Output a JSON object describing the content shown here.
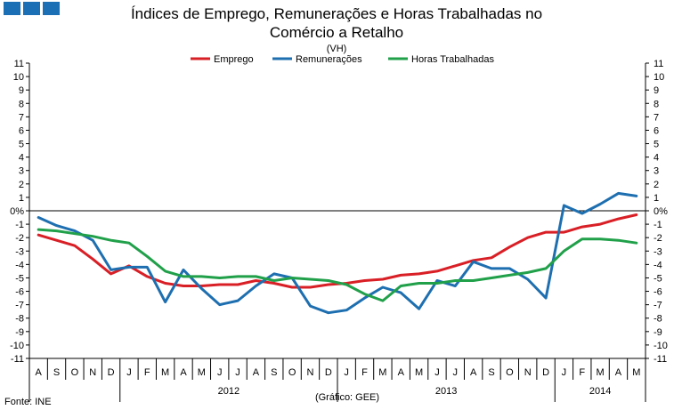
{
  "logo": {
    "color": "#1a6fb5"
  },
  "chart_data": {
    "type": "line",
    "title": "Índices de Emprego, Remunerações e Horas Trabalhadas no Comércio a Retalho",
    "subtitle": "(VH)",
    "y_unit": "%",
    "ylim": [
      -11,
      11
    ],
    "yticks": [
      "11",
      "10",
      "9",
      "8",
      "7",
      "6",
      "5",
      "4",
      "3",
      "2",
      "1",
      "0%",
      "-1",
      "-2",
      "-3",
      "-4",
      "-5",
      "-6",
      "-7",
      "-8",
      "-9",
      "-10",
      "-11"
    ],
    "yticks_right": [
      "11",
      "10",
      "9",
      "8",
      "7",
      "6",
      "5",
      "4",
      "3",
      "2",
      "1",
      "0%",
      "-1",
      "-2",
      "-3",
      "-4",
      "-5",
      "-6",
      "-7",
      "-8",
      "-9",
      "-10",
      "-11"
    ],
    "categories": [
      "A",
      "S",
      "O",
      "N",
      "D",
      "J",
      "F",
      "M",
      "A",
      "M",
      "J",
      "J",
      "A",
      "S",
      "O",
      "N",
      "D",
      "J",
      "F",
      "M",
      "A",
      "M",
      "J",
      "J",
      "A",
      "S",
      "O",
      "N",
      "D",
      "J",
      "F",
      "M",
      "A",
      "M"
    ],
    "years": [
      {
        "label": "2012",
        "start": 5,
        "end": 16
      },
      {
        "label": "2013",
        "start": 17,
        "end": 28
      },
      {
        "label": "2014",
        "start": 29,
        "end": 33
      }
    ],
    "series": [
      {
        "name": "Emprego",
        "color": "#d91f26",
        "values": [
          -1.8,
          -2.2,
          -2.6,
          -3.6,
          -4.7,
          -4.1,
          -4.9,
          -5.4,
          -5.6,
          -5.6,
          -5.5,
          -5.5,
          -5.2,
          -5.4,
          -5.7,
          -5.7,
          -5.5,
          -5.4,
          -5.2,
          -5.1,
          -4.8,
          -4.7,
          -4.5,
          -4.1,
          -3.7,
          -3.5,
          -2.7,
          -2.0,
          -1.6,
          -1.6,
          -1.2,
          -1.0,
          -0.6,
          -0.3
        ]
      },
      {
        "name": "Remunerações",
        "color": "#1e6fb0",
        "values": [
          -0.5,
          -1.1,
          -1.5,
          -2.2,
          -4.4,
          -4.2,
          -4.2,
          -6.8,
          -4.4,
          -5.8,
          -7.0,
          -6.7,
          -5.6,
          -4.7,
          -5.0,
          -7.1,
          -7.6,
          -7.4,
          -6.5,
          -5.7,
          -6.1,
          -7.3,
          -5.2,
          -5.6,
          -3.8,
          -4.3,
          -4.3,
          -5.1,
          -6.5,
          0.4,
          -0.2,
          0.5,
          1.3,
          1.1
        ]
      },
      {
        "name": "Horas Trabalhadas",
        "color": "#21a04a",
        "values": [
          -1.4,
          -1.5,
          -1.7,
          -1.9,
          -2.2,
          -2.4,
          -3.4,
          -4.5,
          -4.9,
          -4.9,
          -5.0,
          -4.9,
          -4.9,
          -5.2,
          -5.0,
          -5.1,
          -5.2,
          -5.5,
          -6.2,
          -6.7,
          -5.6,
          -5.4,
          -5.4,
          -5.2,
          -5.2,
          -5.0,
          -4.8,
          -4.6,
          -4.3,
          -3.0,
          -2.1,
          -2.1,
          -2.2,
          -2.4
        ]
      }
    ]
  },
  "footer": {
    "source": "Fonte: INE",
    "credit": "(Gráfico: GEE)"
  }
}
